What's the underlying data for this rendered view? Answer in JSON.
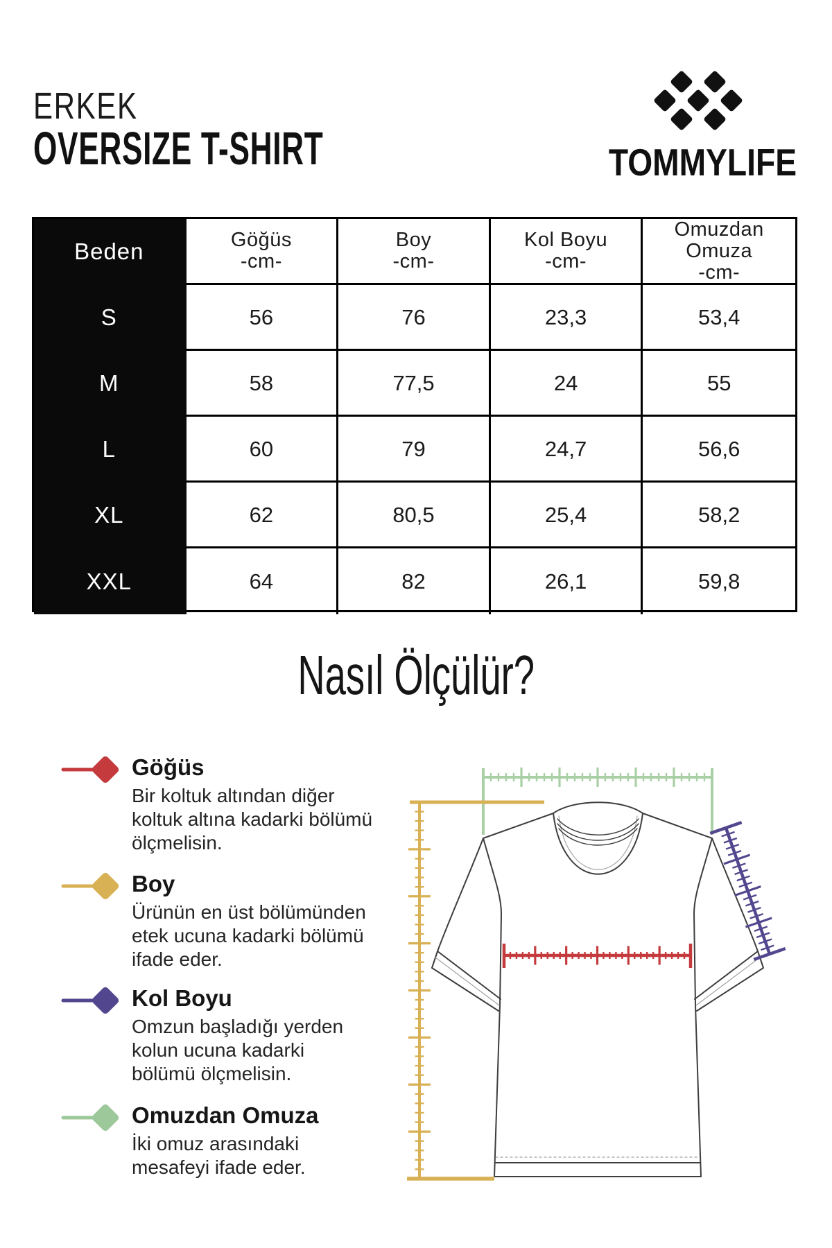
{
  "header": {
    "category": "ERKEK",
    "product": "OVERSIZE T-SHIRT",
    "brand": "TOMMYLIFE",
    "logo_icon": "diamond-lattice-icon",
    "logo_color": "#111111"
  },
  "size_table": {
    "corner_label": "Beden",
    "columns": [
      "Göğüs\n-cm-",
      "Boy\n-cm-",
      "Kol Boyu\n-cm-",
      "Omuzdan\nOmuza\n-cm-"
    ],
    "rows": [
      {
        "size": "S",
        "values": [
          "56",
          "76",
          "23,3",
          "53,4"
        ]
      },
      {
        "size": "M",
        "values": [
          "58",
          "77,5",
          "24",
          "55"
        ]
      },
      {
        "size": "L",
        "values": [
          "60",
          "79",
          "24,7",
          "56,6"
        ]
      },
      {
        "size": "XL",
        "values": [
          "62",
          "80,5",
          "25,4",
          "58,2"
        ]
      },
      {
        "size": "XXL",
        "values": [
          "64",
          "82",
          "26,1",
          "59,8"
        ]
      }
    ],
    "header_bg": "#0a0a0a",
    "header_text_color": "#ffffff"
  },
  "how_to": {
    "title": "Nasıl Ölçülür?",
    "legend": [
      {
        "name": "Göğüs",
        "color": "#c43a3d",
        "desc": "Bir koltuk altından diğer\nkoltuk altına kadarki bölümü\nölçmelisin."
      },
      {
        "name": "Boy",
        "color": "#d8b155",
        "desc": "Ürünün en üst bölümünden\netek ucuna kadarki bölümü\nifade eder."
      },
      {
        "name": "Kol Boyu",
        "color": "#52478e",
        "desc": "Omzun başladığı yerden\nkolun ucuna kadarki\nbölümü ölçmelisin."
      },
      {
        "name": "Omuzdan Omuza",
        "color": "#9cc89a",
        "desc": "İki omuz arasındaki\nmesafeyi ifade eder."
      }
    ],
    "shoulder_ruler_color": "#a9d0a5"
  }
}
